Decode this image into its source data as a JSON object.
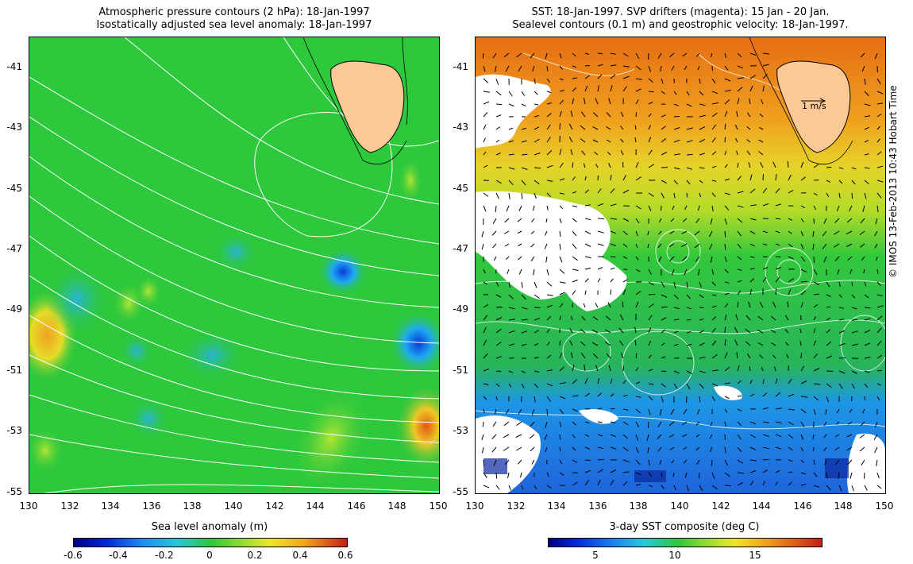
{
  "left_panel": {
    "title_line1": "Atmospheric pressure contours (2 hPa): 18-Jan-1997",
    "title_line2": "Isostatically adjusted sea level anomaly: 18-Jan-1997",
    "y_ticks": [
      "-41",
      "-43",
      "-45",
      "-47",
      "-49",
      "-51",
      "-53",
      "-55"
    ],
    "x_ticks": [
      "130",
      "132",
      "134",
      "136",
      "138",
      "140",
      "142",
      "144",
      "146",
      "148",
      "150"
    ],
    "colorbar": {
      "label": "Sea level anomaly (m)",
      "ticks": [
        "-0.6",
        "-0.4",
        "-0.2",
        "0",
        "0.2",
        "0.4",
        "0.6"
      ]
    }
  },
  "right_panel": {
    "title_line1": "SST: 18-Jan-1997. SVP drifters (magenta): 15 Jan - 20 Jan.",
    "title_line2": "Sealevel contours (0.1 m) and geostrophic velocity: 18-Jan-1997.",
    "y_ticks": [
      "-41",
      "-43",
      "-45",
      "-47",
      "-49",
      "-51",
      "-53",
      "-55"
    ],
    "x_ticks": [
      "130",
      "132",
      "134",
      "136",
      "138",
      "140",
      "142",
      "144",
      "146",
      "148",
      "150"
    ],
    "scale_arrow_label": "1 m/s",
    "colorbar": {
      "label": "3-day SST composite (deg C)",
      "ticks": [
        "5",
        "10",
        "15"
      ]
    }
  },
  "credit": "© IMOS 13-Feb-2013 10:43 Hobart Time",
  "colors": {
    "land": "#fcc896",
    "sla_background": "#2dc83c",
    "sst_warm": "#f08c14",
    "sst_cold": "#1e8cf0",
    "contour": "#ffffff"
  }
}
